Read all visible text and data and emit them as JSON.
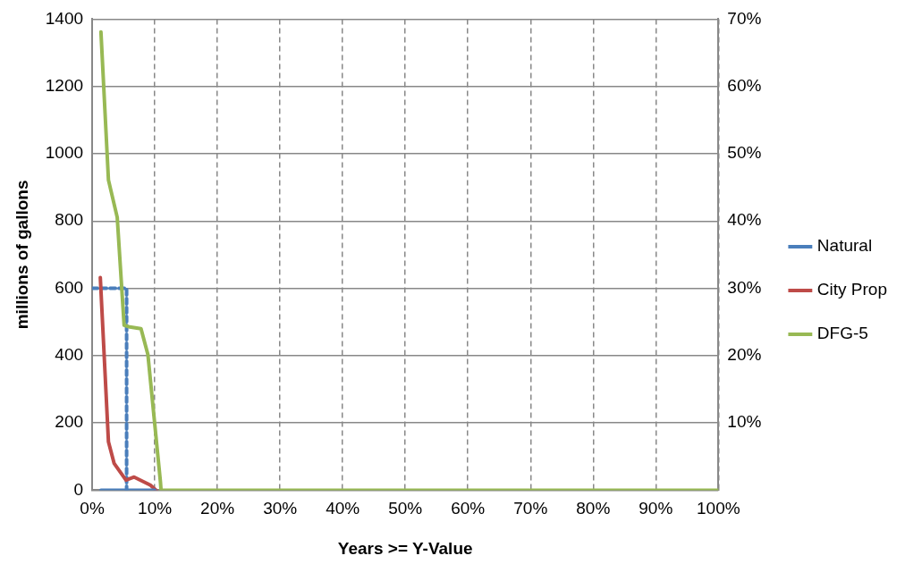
{
  "chart_data": {
    "type": "line",
    "xlabel": "Years >= Y-Value",
    "ylabel": "millions of gallons",
    "xlim": [
      0,
      100
    ],
    "xticks": [
      {
        "value": 0,
        "label": "0%"
      },
      {
        "value": 10,
        "label": "10%"
      },
      {
        "value": 20,
        "label": "20%"
      },
      {
        "value": 30,
        "label": "30%"
      },
      {
        "value": 40,
        "label": "40%"
      },
      {
        "value": 50,
        "label": "50%"
      },
      {
        "value": 60,
        "label": "60%"
      },
      {
        "value": 70,
        "label": "70%"
      },
      {
        "value": 80,
        "label": "80%"
      },
      {
        "value": 90,
        "label": "90%"
      },
      {
        "value": 100,
        "label": "100%"
      }
    ],
    "ylim": [
      0,
      1400
    ],
    "yticks": [
      0,
      200,
      400,
      600,
      800,
      1000,
      1200,
      1400
    ],
    "y2lim": [
      0,
      70
    ],
    "y2ticks": [
      {
        "value": 0,
        "label": null
      },
      {
        "value": 10,
        "label": "10%"
      },
      {
        "value": 20,
        "label": "20%"
      },
      {
        "value": 30,
        "label": "30%"
      },
      {
        "value": 40,
        "label": "40%"
      },
      {
        "value": 50,
        "label": "50%"
      },
      {
        "value": 60,
        "label": "60%"
      },
      {
        "value": 70,
        "label": "70%"
      }
    ],
    "grid": true,
    "legend": "right",
    "marker": "none",
    "line_style": "solid",
    "series": [
      {
        "name": "Natural",
        "color": "#4a7ebb",
        "x": [
          1.4,
          5.5,
          10
        ],
        "values": [
          0,
          0,
          0
        ]
      },
      {
        "name": "City Prop",
        "color": "#be4b48",
        "x": [
          1.3,
          2.6,
          3.5,
          5.4,
          6.7,
          9.3,
          10.2
        ],
        "values": [
          632,
          144,
          80,
          30,
          39,
          15,
          0
        ]
      },
      {
        "name": "DFG-5",
        "color": "#98b954",
        "x": [
          1.4,
          2.6,
          4,
          5.1,
          6,
          7.8,
          8.9,
          10.9,
          11,
          100
        ],
        "values": [
          1362,
          922,
          811,
          490,
          485,
          480,
          403,
          25,
          0,
          0
        ]
      },
      {
        "color": "#4a7ebb",
        "line_style": "dashed",
        "x": [
          0,
          5.5,
          5.5
        ],
        "values": [
          600,
          600,
          0
        ]
      }
    ]
  }
}
